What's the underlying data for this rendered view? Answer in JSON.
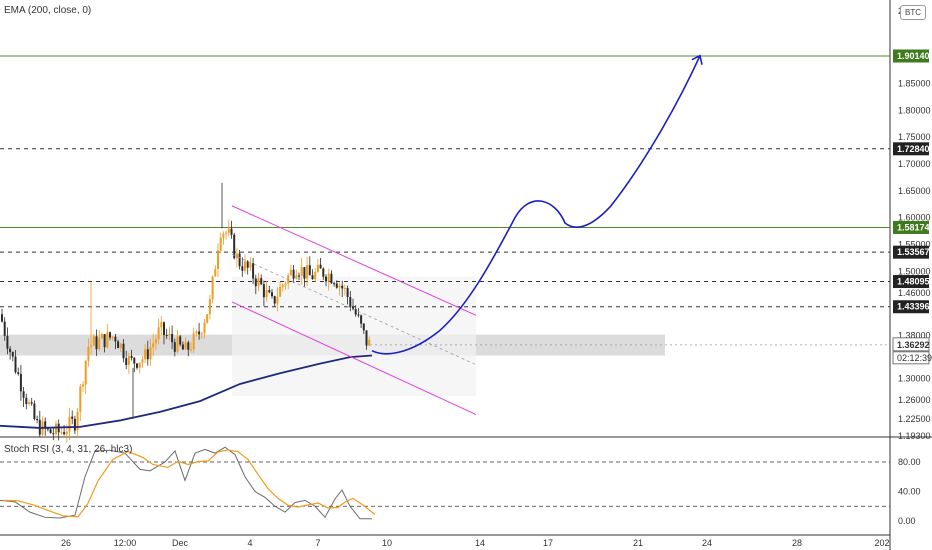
{
  "indicators": {
    "ema_label": "EMA (200, close, 0)",
    "stoch_label": "Stoch RSI (3, 4, 31, 26, hlc3)"
  },
  "currency_badge": "BTC",
  "price_axis": {
    "top_partial": "2.",
    "ticks": [
      "1.90140",
      "1.85000",
      "1.80000",
      "1.75000",
      "1.70000",
      "1.65000",
      "1.60000",
      "1.55000",
      "1.50000",
      "1.46000",
      "1.43396",
      "1.38000",
      "1.36292",
      "1.30000",
      "1.26000",
      "1.22500",
      "1.19300"
    ],
    "tick_values": [
      1.9014,
      1.85,
      1.8,
      1.75,
      1.7,
      1.65,
      1.6,
      1.55,
      1.5,
      1.46,
      1.43396,
      1.38,
      1.36292,
      1.3,
      1.26,
      1.225,
      1.193
    ]
  },
  "levels": [
    {
      "value": 1.9014,
      "label": "1.90140",
      "style": "solid",
      "color": "#4f8a2b"
    },
    {
      "value": 1.7284,
      "label": "1.72840",
      "style": "dashed",
      "color": "#333333"
    },
    {
      "value": 1.58174,
      "label": "1.58174",
      "style": "solid",
      "color": "#4f8a2b"
    },
    {
      "value": 1.53567,
      "label": "1.53567",
      "style": "dashed",
      "color": "#333333"
    },
    {
      "value": 1.48095,
      "label": "1.48095",
      "style": "dashed",
      "color": "#333333"
    },
    {
      "value": 1.43396,
      "label": "1.43396",
      "style": "dashed",
      "color": "#333333"
    }
  ],
  "current_price": {
    "value": 1.36292,
    "label": "1.36292",
    "countdown": "02:12:39"
  },
  "time_axis": {
    "labels": [
      "26",
      "12:00",
      "Dec",
      "4",
      "7",
      "10",
      "14",
      "17",
      "21",
      "24",
      "28",
      "202"
    ]
  },
  "stoch_axis": {
    "ticks": [
      "80.00",
      "40.00",
      "0.00"
    ],
    "tick_values": [
      80,
      40,
      0
    ]
  },
  "colors": {
    "up": "#f29b1d",
    "down": "#2b2b2b",
    "ema": "#1f2a7a",
    "channel": "#e040e0",
    "arrow": "#1b1fbf",
    "tag_green": "#3f7a1d",
    "tag_dark": "#222222"
  }
}
